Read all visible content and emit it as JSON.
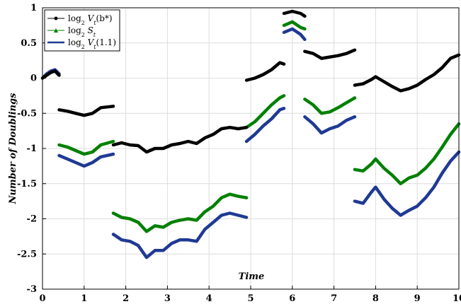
{
  "chart_data": {
    "type": "line",
    "title": "",
    "xlabel": "Time",
    "ylabel": "Number of Doublings",
    "xlim": [
      0,
      10
    ],
    "ylim": [
      -3,
      1
    ],
    "xticks": [
      "0",
      "1",
      "2",
      "3",
      "4",
      "5",
      "6",
      "7",
      "8",
      "9",
      "10"
    ],
    "yticks": [
      "1",
      "0.5",
      "0",
      "-0.5",
      "-1",
      "-1.5",
      "-2",
      "-2.5",
      "-3"
    ],
    "grid": true,
    "legend_position": "top-left",
    "series": [
      {
        "name": "log₂ V_t(b*)",
        "color": "#000000",
        "marker": "dot",
        "segments": [
          [
            [
              0.0,
              0.0
            ],
            [
              0.1,
              0.04
            ],
            [
              0.2,
              0.08
            ],
            [
              0.3,
              0.1
            ],
            [
              0.4,
              0.04
            ]
          ],
          [
            [
              0.4,
              -0.45
            ],
            [
              0.6,
              -0.47
            ],
            [
              0.8,
              -0.5
            ],
            [
              1.0,
              -0.53
            ],
            [
              1.2,
              -0.5
            ],
            [
              1.4,
              -0.42
            ],
            [
              1.7,
              -0.4
            ]
          ],
          [
            [
              1.7,
              -0.95
            ],
            [
              1.9,
              -0.92
            ],
            [
              2.1,
              -0.95
            ],
            [
              2.3,
              -0.96
            ],
            [
              2.5,
              -1.05
            ],
            [
              2.7,
              -1.0
            ],
            [
              2.9,
              -1.0
            ],
            [
              3.1,
              -0.95
            ],
            [
              3.3,
              -0.93
            ],
            [
              3.5,
              -0.9
            ],
            [
              3.7,
              -0.93
            ],
            [
              3.9,
              -0.85
            ],
            [
              4.1,
              -0.8
            ],
            [
              4.3,
              -0.72
            ],
            [
              4.5,
              -0.7
            ],
            [
              4.7,
              -0.72
            ],
            [
              4.9,
              -0.7
            ]
          ],
          [
            [
              4.9,
              -0.03
            ],
            [
              5.1,
              0.0
            ],
            [
              5.3,
              0.05
            ],
            [
              5.5,
              0.12
            ],
            [
              5.7,
              0.22
            ],
            [
              5.8,
              0.2
            ]
          ],
          [
            [
              5.8,
              0.92
            ],
            [
              6.0,
              0.95
            ],
            [
              6.2,
              0.92
            ],
            [
              6.3,
              0.88
            ]
          ],
          [
            [
              6.3,
              0.38
            ],
            [
              6.5,
              0.35
            ],
            [
              6.7,
              0.28
            ],
            [
              6.9,
              0.3
            ],
            [
              7.1,
              0.32
            ],
            [
              7.3,
              0.35
            ],
            [
              7.5,
              0.4
            ]
          ],
          [
            [
              7.5,
              -0.1
            ],
            [
              7.7,
              -0.08
            ],
            [
              7.9,
              -0.02
            ],
            [
              8.0,
              0.02
            ],
            [
              8.2,
              -0.05
            ],
            [
              8.4,
              -0.12
            ],
            [
              8.6,
              -0.18
            ],
            [
              8.8,
              -0.15
            ],
            [
              9.0,
              -0.1
            ],
            [
              9.2,
              -0.02
            ],
            [
              9.4,
              0.05
            ],
            [
              9.6,
              0.15
            ],
            [
              9.8,
              0.28
            ],
            [
              10.0,
              0.33
            ]
          ]
        ]
      },
      {
        "name": "log₂ S_t",
        "color": "#008000",
        "marker": "triangle",
        "segments": [
          [
            [
              0.4,
              -0.95
            ],
            [
              0.6,
              -0.98
            ],
            [
              0.8,
              -1.03
            ],
            [
              1.0,
              -1.08
            ],
            [
              1.2,
              -1.05
            ],
            [
              1.4,
              -0.95
            ],
            [
              1.7,
              -0.9
            ]
          ],
          [
            [
              1.7,
              -1.92
            ],
            [
              1.9,
              -1.98
            ],
            [
              2.1,
              -2.0
            ],
            [
              2.3,
              -2.05
            ],
            [
              2.5,
              -2.18
            ],
            [
              2.7,
              -2.1
            ],
            [
              2.9,
              -2.12
            ],
            [
              3.1,
              -2.05
            ],
            [
              3.3,
              -2.02
            ],
            [
              3.5,
              -2.0
            ],
            [
              3.7,
              -2.02
            ],
            [
              3.9,
              -1.9
            ],
            [
              4.1,
              -1.82
            ],
            [
              4.3,
              -1.7
            ],
            [
              4.5,
              -1.65
            ],
            [
              4.7,
              -1.68
            ],
            [
              4.9,
              -1.7
            ]
          ],
          [
            [
              4.9,
              -0.7
            ],
            [
              5.1,
              -0.62
            ],
            [
              5.3,
              -0.5
            ],
            [
              5.5,
              -0.38
            ],
            [
              5.7,
              -0.28
            ],
            [
              5.8,
              -0.25
            ]
          ],
          [
            [
              5.8,
              0.75
            ],
            [
              6.0,
              0.8
            ],
            [
              6.2,
              0.72
            ],
            [
              6.3,
              0.7
            ]
          ],
          [
            [
              6.3,
              -0.3
            ],
            [
              6.5,
              -0.38
            ],
            [
              6.7,
              -0.5
            ],
            [
              6.9,
              -0.48
            ],
            [
              7.1,
              -0.42
            ],
            [
              7.3,
              -0.35
            ],
            [
              7.5,
              -0.28
            ]
          ],
          [
            [
              7.5,
              -1.3
            ],
            [
              7.7,
              -1.32
            ],
            [
              7.9,
              -1.22
            ],
            [
              8.0,
              -1.15
            ],
            [
              8.2,
              -1.28
            ],
            [
              8.4,
              -1.38
            ],
            [
              8.6,
              -1.5
            ],
            [
              8.8,
              -1.42
            ],
            [
              9.0,
              -1.38
            ],
            [
              9.2,
              -1.28
            ],
            [
              9.4,
              -1.15
            ],
            [
              9.6,
              -0.98
            ],
            [
              9.8,
              -0.8
            ],
            [
              10.0,
              -0.65
            ]
          ]
        ]
      },
      {
        "name": "log₂ V_t(1.1)",
        "color": "#1f3a93",
        "marker": "line",
        "segments": [
          [
            [
              0.0,
              0.0
            ],
            [
              0.1,
              0.06
            ],
            [
              0.2,
              0.1
            ],
            [
              0.3,
              0.12
            ],
            [
              0.4,
              0.06
            ]
          ],
          [
            [
              0.4,
              -1.1
            ],
            [
              0.6,
              -1.15
            ],
            [
              0.8,
              -1.2
            ],
            [
              1.0,
              -1.25
            ],
            [
              1.2,
              -1.2
            ],
            [
              1.4,
              -1.12
            ],
            [
              1.7,
              -1.08
            ]
          ],
          [
            [
              1.7,
              -2.22
            ],
            [
              1.9,
              -2.3
            ],
            [
              2.1,
              -2.32
            ],
            [
              2.3,
              -2.38
            ],
            [
              2.5,
              -2.55
            ],
            [
              2.7,
              -2.45
            ],
            [
              2.9,
              -2.45
            ],
            [
              3.1,
              -2.35
            ],
            [
              3.3,
              -2.3
            ],
            [
              3.5,
              -2.3
            ],
            [
              3.7,
              -2.32
            ],
            [
              3.9,
              -2.15
            ],
            [
              4.1,
              -2.05
            ],
            [
              4.3,
              -1.95
            ],
            [
              4.5,
              -1.92
            ],
            [
              4.7,
              -1.95
            ],
            [
              4.9,
              -1.98
            ]
          ],
          [
            [
              4.9,
              -0.9
            ],
            [
              5.1,
              -0.8
            ],
            [
              5.3,
              -0.68
            ],
            [
              5.5,
              -0.58
            ],
            [
              5.7,
              -0.45
            ],
            [
              5.8,
              -0.43
            ]
          ],
          [
            [
              5.8,
              0.65
            ],
            [
              6.0,
              0.7
            ],
            [
              6.2,
              0.62
            ],
            [
              6.3,
              0.55
            ]
          ],
          [
            [
              6.3,
              -0.55
            ],
            [
              6.5,
              -0.65
            ],
            [
              6.7,
              -0.78
            ],
            [
              6.9,
              -0.72
            ],
            [
              7.1,
              -0.68
            ],
            [
              7.3,
              -0.6
            ],
            [
              7.5,
              -0.55
            ]
          ],
          [
            [
              7.5,
              -1.75
            ],
            [
              7.7,
              -1.78
            ],
            [
              7.9,
              -1.62
            ],
            [
              8.0,
              -1.55
            ],
            [
              8.2,
              -1.72
            ],
            [
              8.4,
              -1.85
            ],
            [
              8.6,
              -1.95
            ],
            [
              8.8,
              -1.88
            ],
            [
              9.0,
              -1.82
            ],
            [
              9.2,
              -1.7
            ],
            [
              9.4,
              -1.55
            ],
            [
              9.6,
              -1.35
            ],
            [
              9.8,
              -1.18
            ],
            [
              10.0,
              -1.05
            ]
          ]
        ]
      }
    ],
    "legend": [
      {
        "prefix": "log",
        "sub": "2",
        "body": " V",
        "tsub": "t",
        "arg": "(b*)"
      },
      {
        "prefix": "log",
        "sub": "2",
        "body": " S",
        "tsub": "t",
        "arg": ""
      },
      {
        "prefix": "log",
        "sub": "2",
        "body": " V",
        "tsub": "t",
        "arg": "(1.1)"
      }
    ]
  }
}
